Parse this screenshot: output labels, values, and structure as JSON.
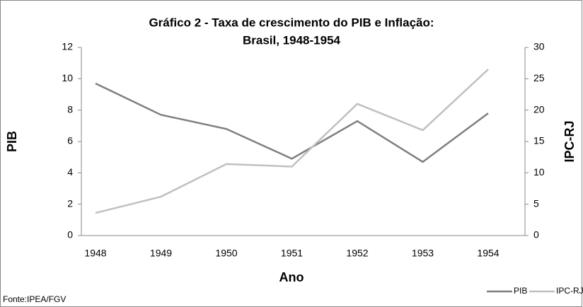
{
  "chart_data": {
    "type": "line",
    "title": [
      "Gráfico 2 - Taxa de crescimento do PIB e Inflação:",
      "Brasil, 1948-1954"
    ],
    "x_label": "Ano",
    "y_label": "PIB",
    "y2_label": "IPC-RJ",
    "source": "Fonte:IPEA/FGV",
    "categories": [
      "1948",
      "1949",
      "1950",
      "1951",
      "1952",
      "1953",
      "1954"
    ],
    "series": [
      {
        "name": "PIB",
        "color": "#7f7f7f",
        "values": [
          9.7,
          7.7,
          6.8,
          4.9,
          7.3,
          4.7,
          7.8
        ]
      },
      {
        "name": "IPC-RJ",
        "color": "#c0c0c0",
        "axis": "y2",
        "values": [
          3.6,
          6.2,
          11.4,
          11.0,
          21.0,
          16.8,
          26.5
        ]
      }
    ],
    "ylim": [
      0,
      12
    ],
    "yticks": [
      0,
      2,
      4,
      6,
      8,
      10,
      12
    ],
    "y2lim": [
      0,
      30
    ],
    "y2ticks": [
      0,
      5,
      10,
      15,
      20,
      25,
      30
    ],
    "grid": false,
    "legend": "bottom-right"
  }
}
